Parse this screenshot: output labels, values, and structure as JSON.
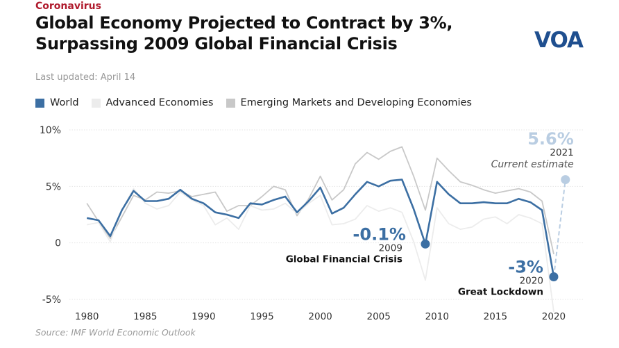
{
  "header": {
    "kicker": "Coronavirus",
    "title_line1": "Global Economy Projected to Contract by 3%,",
    "title_line2": "Surpassing 2009 Global Financial Crisis",
    "updated": "Last updated: April 14",
    "logo_text": "VOA"
  },
  "source": "Source: IMF World Economic Outlook",
  "colors": {
    "world": "#3c6fa3",
    "advanced": "#ececec",
    "emerging": "#c8c8c8",
    "estimate": "#b9cde2",
    "kicker": "#b01c2e"
  },
  "chart_data": {
    "type": "line",
    "title": "Global Economy Projected to Contract by 3%, Surpassing 2009 Global Financial Crisis",
    "xlabel": "",
    "ylabel": "",
    "x": [
      1980,
      1981,
      1982,
      1983,
      1984,
      1985,
      1986,
      1987,
      1988,
      1989,
      1990,
      1991,
      1992,
      1993,
      1994,
      1995,
      1996,
      1997,
      1998,
      1999,
      2000,
      2001,
      2002,
      2003,
      2004,
      2005,
      2006,
      2007,
      2008,
      2009,
      2010,
      2011,
      2012,
      2013,
      2014,
      2015,
      2016,
      2017,
      2018,
      2019,
      2020
    ],
    "xlim": [
      1978.5,
      2022.5
    ],
    "ylim": [
      -5,
      10
    ],
    "xticks": [
      1980,
      1985,
      1990,
      1995,
      2000,
      2005,
      2010,
      2015,
      2020
    ],
    "yticks": [
      {
        "value": 10,
        "label": "10%"
      },
      {
        "value": 5,
        "label": "5%"
      },
      {
        "value": 0,
        "label": "0"
      },
      {
        "value": -5,
        "label": "-5%"
      }
    ],
    "series": [
      {
        "name": "Emerging Markets and Developing Economies",
        "color": "#c8c8c8",
        "values": [
          3.5,
          1.9,
          0.4,
          2.3,
          4.2,
          3.8,
          4.5,
          4.4,
          4.6,
          4.1,
          4.3,
          4.5,
          2.8,
          3.3,
          3.3,
          4.1,
          5.0,
          4.7,
          2.4,
          3.9,
          5.9,
          3.8,
          4.7,
          7.0,
          8.0,
          7.4,
          8.1,
          8.5,
          5.9,
          2.9,
          7.5,
          6.4,
          5.4,
          5.1,
          4.7,
          4.4,
          4.6,
          4.8,
          4.5,
          3.7,
          -1.0
        ]
      },
      {
        "name": "Advanced Economies",
        "color": "#ececec",
        "values": [
          1.6,
          1.8,
          0.1,
          2.9,
          4.8,
          3.5,
          3.0,
          3.3,
          4.5,
          3.8,
          3.3,
          1.6,
          2.2,
          1.2,
          3.3,
          2.9,
          3.0,
          3.5,
          2.6,
          3.5,
          4.2,
          1.6,
          1.7,
          2.1,
          3.3,
          2.8,
          3.1,
          2.7,
          0.1,
          -3.3,
          3.1,
          1.7,
          1.2,
          1.4,
          2.1,
          2.3,
          1.7,
          2.5,
          2.2,
          1.7,
          -6.1
        ]
      },
      {
        "name": "World",
        "color": "#3c6fa3",
        "values": [
          2.2,
          2.0,
          0.6,
          2.9,
          4.6,
          3.7,
          3.7,
          3.9,
          4.7,
          3.9,
          3.5,
          2.7,
          2.5,
          2.2,
          3.5,
          3.4,
          3.8,
          4.1,
          2.7,
          3.7,
          4.9,
          2.6,
          3.1,
          4.3,
          5.4,
          5.0,
          5.5,
          5.6,
          3.0,
          -0.1,
          5.4,
          4.3,
          3.5,
          3.5,
          3.6,
          3.5,
          3.5,
          3.9,
          3.6,
          2.9,
          -3.0
        ]
      }
    ],
    "estimate": {
      "from_year": 2020,
      "from_value": -3.0,
      "to_year": 2021,
      "to_value": 5.6
    },
    "annotations": [
      {
        "value_label": "-0.1%",
        "year_label": "2009",
        "event": "Global Financial Crisis"
      },
      {
        "value_label": "-3%",
        "year_label": "2020",
        "event": "Great Lockdown"
      },
      {
        "value_label": "5.6%",
        "year_label": "2021",
        "event": "Current estimate"
      }
    ]
  }
}
